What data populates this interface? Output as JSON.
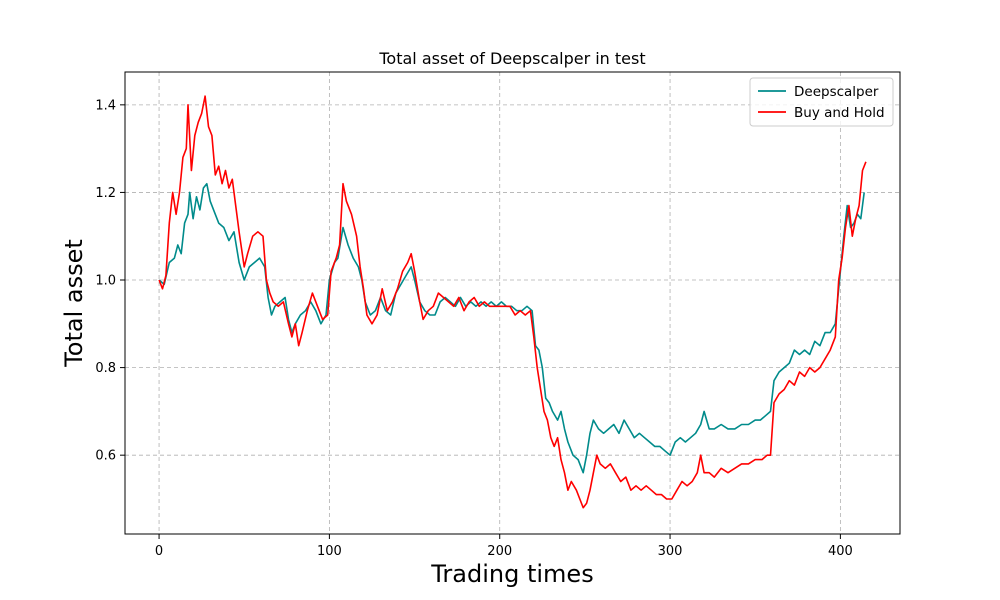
{
  "chart_data": {
    "type": "line",
    "title": "Total asset of Deepscalper in test",
    "xlabel": "Trading times",
    "ylabel": "Total asset",
    "xlim": [
      -20,
      435
    ],
    "ylim": [
      0.42,
      1.475
    ],
    "xticks": [
      0,
      100,
      200,
      300,
      400
    ],
    "yticks": [
      0.6,
      0.8,
      1.0,
      1.2,
      1.4
    ],
    "ytick_labels": [
      "0.6",
      "0.8",
      "1.0",
      "1.2",
      "1.4"
    ],
    "grid": true,
    "legend_position": "top-right",
    "series": [
      {
        "name": "Deepscalper",
        "color": "#008b8b",
        "points": [
          [
            0,
            1.0
          ],
          [
            3,
            0.99
          ],
          [
            6,
            1.04
          ],
          [
            9,
            1.05
          ],
          [
            11,
            1.08
          ],
          [
            13,
            1.06
          ],
          [
            15,
            1.13
          ],
          [
            17,
            1.15
          ],
          [
            18,
            1.2
          ],
          [
            20,
            1.14
          ],
          [
            22,
            1.19
          ],
          [
            24,
            1.16
          ],
          [
            26,
            1.21
          ],
          [
            28,
            1.22
          ],
          [
            30,
            1.18
          ],
          [
            33,
            1.15
          ],
          [
            35,
            1.13
          ],
          [
            38,
            1.12
          ],
          [
            41,
            1.09
          ],
          [
            44,
            1.11
          ],
          [
            47,
            1.04
          ],
          [
            50,
            1.0
          ],
          [
            53,
            1.03
          ],
          [
            56,
            1.04
          ],
          [
            59,
            1.05
          ],
          [
            62,
            1.03
          ],
          [
            64,
            0.96
          ],
          [
            66,
            0.92
          ],
          [
            68,
            0.94
          ],
          [
            71,
            0.95
          ],
          [
            74,
            0.96
          ],
          [
            76,
            0.91
          ],
          [
            78,
            0.88
          ],
          [
            80,
            0.9
          ],
          [
            83,
            0.92
          ],
          [
            86,
            0.93
          ],
          [
            89,
            0.95
          ],
          [
            92,
            0.93
          ],
          [
            95,
            0.9
          ],
          [
            98,
            0.92
          ],
          [
            100,
            1.0
          ],
          [
            103,
            1.04
          ],
          [
            105,
            1.05
          ],
          [
            108,
            1.12
          ],
          [
            111,
            1.08
          ],
          [
            114,
            1.05
          ],
          [
            117,
            1.03
          ],
          [
            119,
            1.0
          ],
          [
            121,
            0.95
          ],
          [
            124,
            0.92
          ],
          [
            127,
            0.93
          ],
          [
            130,
            0.96
          ],
          [
            133,
            0.93
          ],
          [
            136,
            0.92
          ],
          [
            139,
            0.97
          ],
          [
            142,
            0.99
          ],
          [
            145,
            1.01
          ],
          [
            148,
            1.03
          ],
          [
            150,
            1.0
          ],
          [
            153,
            0.95
          ],
          [
            156,
            0.93
          ],
          [
            159,
            0.92
          ],
          [
            162,
            0.92
          ],
          [
            165,
            0.95
          ],
          [
            168,
            0.96
          ],
          [
            171,
            0.95
          ],
          [
            174,
            0.94
          ],
          [
            177,
            0.96
          ],
          [
            180,
            0.94
          ],
          [
            183,
            0.95
          ],
          [
            186,
            0.94
          ],
          [
            189,
            0.95
          ],
          [
            192,
            0.94
          ],
          [
            195,
            0.95
          ],
          [
            198,
            0.94
          ],
          [
            201,
            0.95
          ],
          [
            204,
            0.94
          ],
          [
            207,
            0.94
          ],
          [
            210,
            0.93
          ],
          [
            213,
            0.93
          ],
          [
            216,
            0.94
          ],
          [
            219,
            0.93
          ],
          [
            221,
            0.85
          ],
          [
            223,
            0.84
          ],
          [
            225,
            0.8
          ],
          [
            227,
            0.73
          ],
          [
            229,
            0.72
          ],
          [
            231,
            0.7
          ],
          [
            234,
            0.68
          ],
          [
            236,
            0.7
          ],
          [
            238,
            0.66
          ],
          [
            240,
            0.63
          ],
          [
            243,
            0.6
          ],
          [
            246,
            0.59
          ],
          [
            249,
            0.56
          ],
          [
            251,
            0.6
          ],
          [
            253,
            0.65
          ],
          [
            255,
            0.68
          ],
          [
            258,
            0.66
          ],
          [
            261,
            0.65
          ],
          [
            264,
            0.66
          ],
          [
            267,
            0.67
          ],
          [
            270,
            0.65
          ],
          [
            273,
            0.68
          ],
          [
            276,
            0.66
          ],
          [
            279,
            0.64
          ],
          [
            282,
            0.65
          ],
          [
            285,
            0.64
          ],
          [
            288,
            0.63
          ],
          [
            291,
            0.62
          ],
          [
            294,
            0.62
          ],
          [
            297,
            0.61
          ],
          [
            300,
            0.6
          ],
          [
            303,
            0.63
          ],
          [
            306,
            0.64
          ],
          [
            309,
            0.63
          ],
          [
            312,
            0.64
          ],
          [
            315,
            0.65
          ],
          [
            318,
            0.67
          ],
          [
            320,
            0.7
          ],
          [
            323,
            0.66
          ],
          [
            326,
            0.66
          ],
          [
            330,
            0.67
          ],
          [
            334,
            0.66
          ],
          [
            338,
            0.66
          ],
          [
            342,
            0.67
          ],
          [
            346,
            0.67
          ],
          [
            350,
            0.68
          ],
          [
            353,
            0.68
          ],
          [
            356,
            0.69
          ],
          [
            359,
            0.7
          ],
          [
            361,
            0.77
          ],
          [
            364,
            0.79
          ],
          [
            367,
            0.8
          ],
          [
            370,
            0.81
          ],
          [
            373,
            0.84
          ],
          [
            376,
            0.83
          ],
          [
            379,
            0.84
          ],
          [
            382,
            0.83
          ],
          [
            385,
            0.86
          ],
          [
            388,
            0.85
          ],
          [
            391,
            0.88
          ],
          [
            394,
            0.88
          ],
          [
            397,
            0.9
          ],
          [
            400,
            1.02
          ],
          [
            402,
            1.1
          ],
          [
            404,
            1.17
          ],
          [
            406,
            1.12
          ],
          [
            408,
            1.13
          ],
          [
            410,
            1.15
          ],
          [
            412,
            1.14
          ],
          [
            414,
            1.2
          ]
        ]
      },
      {
        "name": "Buy and Hold",
        "color": "#ff0000",
        "points": [
          [
            0,
            1.0
          ],
          [
            2,
            0.98
          ],
          [
            4,
            1.01
          ],
          [
            6,
            1.13
          ],
          [
            8,
            1.2
          ],
          [
            10,
            1.15
          ],
          [
            12,
            1.2
          ],
          [
            14,
            1.28
          ],
          [
            16,
            1.3
          ],
          [
            17,
            1.4
          ],
          [
            19,
            1.25
          ],
          [
            21,
            1.33
          ],
          [
            23,
            1.36
          ],
          [
            25,
            1.38
          ],
          [
            27,
            1.42
          ],
          [
            29,
            1.35
          ],
          [
            31,
            1.33
          ],
          [
            33,
            1.24
          ],
          [
            35,
            1.26
          ],
          [
            37,
            1.22
          ],
          [
            39,
            1.25
          ],
          [
            41,
            1.21
          ],
          [
            43,
            1.23
          ],
          [
            45,
            1.17
          ],
          [
            47,
            1.11
          ],
          [
            50,
            1.03
          ],
          [
            52,
            1.06
          ],
          [
            55,
            1.1
          ],
          [
            58,
            1.11
          ],
          [
            61,
            1.1
          ],
          [
            63,
            1.0
          ],
          [
            65,
            0.97
          ],
          [
            67,
            0.95
          ],
          [
            70,
            0.94
          ],
          [
            73,
            0.95
          ],
          [
            76,
            0.9
          ],
          [
            78,
            0.87
          ],
          [
            80,
            0.9
          ],
          [
            82,
            0.85
          ],
          [
            84,
            0.88
          ],
          [
            87,
            0.93
          ],
          [
            90,
            0.97
          ],
          [
            93,
            0.94
          ],
          [
            96,
            0.91
          ],
          [
            99,
            0.92
          ],
          [
            101,
            1.02
          ],
          [
            104,
            1.05
          ],
          [
            106,
            1.08
          ],
          [
            108,
            1.22
          ],
          [
            110,
            1.18
          ],
          [
            113,
            1.15
          ],
          [
            116,
            1.1
          ],
          [
            118,
            1.03
          ],
          [
            120,
            0.98
          ],
          [
            122,
            0.92
          ],
          [
            125,
            0.9
          ],
          [
            128,
            0.92
          ],
          [
            131,
            0.98
          ],
          [
            134,
            0.93
          ],
          [
            137,
            0.95
          ],
          [
            140,
            0.98
          ],
          [
            143,
            1.02
          ],
          [
            146,
            1.04
          ],
          [
            148,
            1.06
          ],
          [
            150,
            1.02
          ],
          [
            153,
            0.95
          ],
          [
            155,
            0.91
          ],
          [
            158,
            0.93
          ],
          [
            161,
            0.94
          ],
          [
            164,
            0.97
          ],
          [
            167,
            0.96
          ],
          [
            170,
            0.95
          ],
          [
            173,
            0.94
          ],
          [
            176,
            0.96
          ],
          [
            179,
            0.93
          ],
          [
            182,
            0.95
          ],
          [
            185,
            0.96
          ],
          [
            188,
            0.94
          ],
          [
            191,
            0.95
          ],
          [
            194,
            0.94
          ],
          [
            197,
            0.94
          ],
          [
            200,
            0.94
          ],
          [
            203,
            0.94
          ],
          [
            206,
            0.94
          ],
          [
            209,
            0.92
          ],
          [
            212,
            0.93
          ],
          [
            215,
            0.92
          ],
          [
            218,
            0.93
          ],
          [
            220,
            0.87
          ],
          [
            222,
            0.8
          ],
          [
            224,
            0.75
          ],
          [
            226,
            0.7
          ],
          [
            228,
            0.68
          ],
          [
            230,
            0.64
          ],
          [
            232,
            0.62
          ],
          [
            234,
            0.64
          ],
          [
            236,
            0.59
          ],
          [
            238,
            0.56
          ],
          [
            240,
            0.52
          ],
          [
            242,
            0.54
          ],
          [
            245,
            0.52
          ],
          [
            247,
            0.5
          ],
          [
            249,
            0.48
          ],
          [
            251,
            0.49
          ],
          [
            253,
            0.52
          ],
          [
            255,
            0.56
          ],
          [
            257,
            0.6
          ],
          [
            259,
            0.58
          ],
          [
            262,
            0.57
          ],
          [
            265,
            0.58
          ],
          [
            268,
            0.56
          ],
          [
            271,
            0.54
          ],
          [
            274,
            0.55
          ],
          [
            277,
            0.52
          ],
          [
            280,
            0.53
          ],
          [
            283,
            0.52
          ],
          [
            286,
            0.53
          ],
          [
            289,
            0.52
          ],
          [
            292,
            0.51
          ],
          [
            295,
            0.51
          ],
          [
            298,
            0.5
          ],
          [
            301,
            0.5
          ],
          [
            304,
            0.52
          ],
          [
            307,
            0.54
          ],
          [
            310,
            0.53
          ],
          [
            313,
            0.54
          ],
          [
            316,
            0.56
          ],
          [
            318,
            0.6
          ],
          [
            320,
            0.56
          ],
          [
            323,
            0.56
          ],
          [
            326,
            0.55
          ],
          [
            330,
            0.57
          ],
          [
            334,
            0.56
          ],
          [
            338,
            0.57
          ],
          [
            342,
            0.58
          ],
          [
            346,
            0.58
          ],
          [
            350,
            0.59
          ],
          [
            354,
            0.59
          ],
          [
            357,
            0.6
          ],
          [
            359,
            0.6
          ],
          [
            361,
            0.72
          ],
          [
            364,
            0.74
          ],
          [
            367,
            0.75
          ],
          [
            370,
            0.77
          ],
          [
            373,
            0.76
          ],
          [
            376,
            0.79
          ],
          [
            379,
            0.78
          ],
          [
            382,
            0.8
          ],
          [
            385,
            0.79
          ],
          [
            388,
            0.8
          ],
          [
            391,
            0.82
          ],
          [
            394,
            0.84
          ],
          [
            397,
            0.87
          ],
          [
            399,
            1.0
          ],
          [
            401,
            1.05
          ],
          [
            403,
            1.12
          ],
          [
            405,
            1.17
          ],
          [
            407,
            1.1
          ],
          [
            409,
            1.14
          ],
          [
            411,
            1.17
          ],
          [
            413,
            1.25
          ],
          [
            415,
            1.27
          ]
        ]
      }
    ]
  }
}
